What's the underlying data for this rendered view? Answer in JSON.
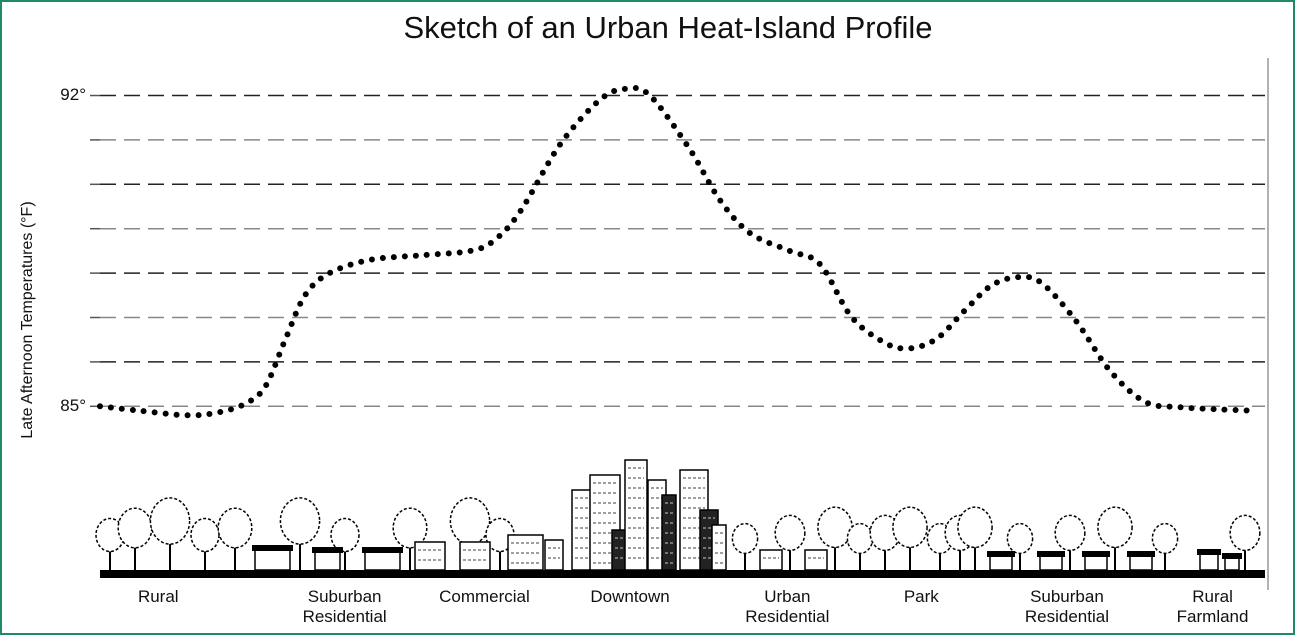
{
  "chart_data": {
    "type": "line",
    "title": "Sketch of an Urban Heat-Island Profile",
    "y_label": "Late Afternoon Temperatures (°F)",
    "xlim": [
      0,
      100
    ],
    "ylim": [
      81.2,
      92.8
    ],
    "yticks": [
      {
        "value": 85,
        "label": "85°"
      },
      {
        "value": 86,
        "label": null
      },
      {
        "value": 87,
        "label": null
      },
      {
        "value": 88,
        "label": null
      },
      {
        "value": 89,
        "label": null
      },
      {
        "value": 90,
        "label": null
      },
      {
        "value": 91,
        "label": null
      },
      {
        "value": 92,
        "label": "92°"
      }
    ],
    "xticks": [
      {
        "value": 5,
        "label": "Rural"
      },
      {
        "value": 21,
        "label": "Suburban Residential"
      },
      {
        "value": 33,
        "label": "Commercial"
      },
      {
        "value": 45.5,
        "label": "Downtown"
      },
      {
        "value": 59,
        "label": "Urban Residential"
      },
      {
        "value": 70.5,
        "label": "Park"
      },
      {
        "value": 83,
        "label": "Suburban Residential"
      },
      {
        "value": 95.5,
        "label": "Rural Farmland"
      }
    ],
    "grid": true,
    "color": "#000000",
    "x": [
      0,
      3.4,
      7.3,
      9.9,
      12.4,
      14.2,
      15.9,
      17.6,
      19.7,
      23.2,
      27.5,
      31.8,
      33.9,
      36.1,
      39.5,
      42.9,
      45.1,
      47.2,
      50.6,
      53.2,
      55.8,
      59.2,
      61.8,
      64.4,
      66.9,
      69.1,
      71.7,
      74.2,
      76.4,
      78.5,
      80.7,
      83.7,
      86.7,
      89.7,
      92.7,
      96.1,
      99.1
    ],
    "values": [
      85.0,
      84.9,
      84.8,
      84.85,
      85.05,
      85.45,
      86.5,
      87.5,
      88.0,
      88.3,
      88.4,
      88.5,
      88.75,
      89.4,
      90.9,
      91.9,
      92.15,
      92.0,
      90.8,
      89.65,
      88.9,
      88.5,
      88.2,
      87.05,
      86.5,
      86.3,
      86.5,
      87.15,
      87.7,
      87.9,
      87.8,
      86.95,
      85.8,
      85.1,
      84.98,
      84.93,
      84.9
    ]
  }
}
